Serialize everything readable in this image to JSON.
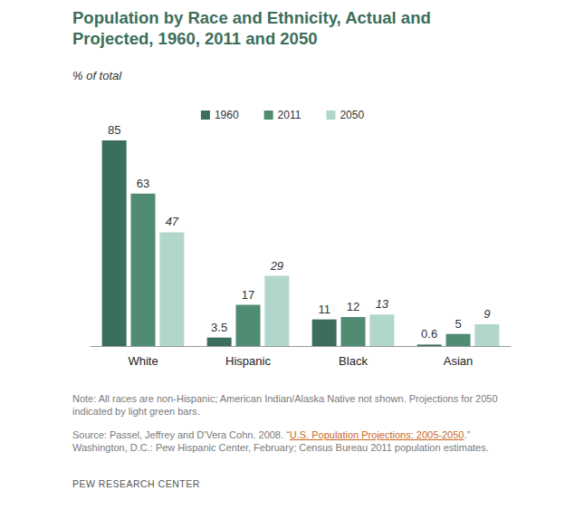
{
  "chart_data": {
    "type": "bar",
    "title": "Population by Race and Ethnicity, Actual and Projected, 1960, 2011 and 2050",
    "subtitle": "% of total",
    "categories": [
      "White",
      "Hispanic",
      "Black",
      "Asian"
    ],
    "series": [
      {
        "name": "1960",
        "color": "#3b6e5b",
        "values": [
          85,
          3.5,
          11,
          0.6
        ]
      },
      {
        "name": "2011",
        "color": "#4f8c72",
        "values": [
          63,
          17,
          12,
          5
        ]
      },
      {
        "name": "2050",
        "color": "#b1d6cb",
        "values": [
          47,
          29,
          13,
          9
        ]
      }
    ],
    "ylim": [
      0,
      85
    ],
    "grid": false,
    "legend": "top",
    "data_labels": true,
    "tick_labels": "x",
    "annotations": {
      "note": "Note: All races are non-Hispanic; American Indian/Alaska Native not shown. Projections for 2050 indicated by light green bars.",
      "source": [
        "Source: Passel, Jeffrey and D'Vera Cohn. 2008. “",
        "U.S. Population Projections: 2005-2050",
        ".” Washington, D.C.: Pew Hispanic Center, February; Census Bureau 2011 population estimates."
      ],
      "credit": "PEW RESEARCH CENTER"
    }
  }
}
